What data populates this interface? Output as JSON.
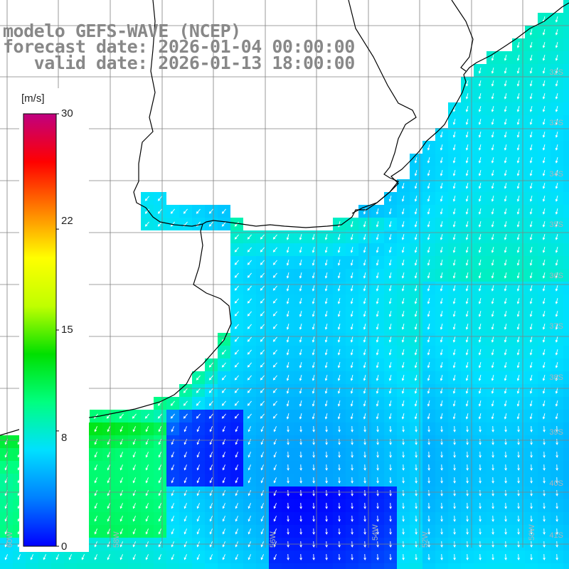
{
  "header": {
    "model_line": "modelo GEFS-WAVE (NCEP)",
    "forecast_line": "forecast date: 2026-01-04 00:00:00",
    "valid_line": "   valid date: 2026-01-13 18:00:00"
  },
  "colorbar": {
    "unit": "[m/s]",
    "ticks": [
      "30",
      "22",
      "15",
      "8",
      "0"
    ],
    "tick_values": [
      30,
      22,
      15,
      8,
      0
    ],
    "range": [
      0,
      30
    ],
    "colors": [
      "#0000ff",
      "#0080ff",
      "#00e0ff",
      "#00ff80",
      "#00e000",
      "#c0ff00",
      "#ffff00",
      "#ff8000",
      "#ff0000",
      "#c00080"
    ]
  },
  "grid_labels": {
    "latitudes": [
      "32S",
      "33S",
      "34S",
      "35S",
      "36S",
      "37S",
      "38S",
      "39S",
      "40S",
      "41S"
    ],
    "longitudes": [
      "60W",
      "58W",
      "56W",
      "54W",
      "52W",
      "50W"
    ]
  },
  "colors": {
    "grid": "#808080",
    "coast": "#000000",
    "land": "#ffffff",
    "arrow": "#ffffff",
    "title": "#888888"
  }
}
